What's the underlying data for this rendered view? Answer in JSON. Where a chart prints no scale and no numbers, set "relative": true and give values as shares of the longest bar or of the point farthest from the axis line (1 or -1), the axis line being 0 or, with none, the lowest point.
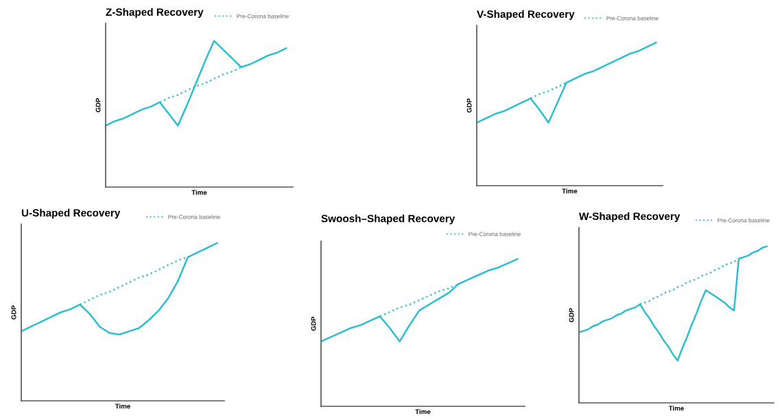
{
  "chart_data": [
    {
      "type": "line",
      "title": "Z-Shaped Recovery",
      "xlabel": "Time",
      "ylabel": "GDP",
      "relative": true,
      "tick_labels": false,
      "legend": "top right",
      "categories": [
        null,
        null,
        null,
        null,
        null,
        null,
        null,
        null,
        null,
        null,
        null,
        null,
        null,
        null,
        null,
        null,
        null,
        null,
        null,
        null,
        null
      ],
      "series": [
        {
          "color": "#2cbdd3",
          "line_style": "solid",
          "values": [
            0.42,
            0.45,
            0.47,
            0.5,
            0.53,
            0.55,
            0.58,
            0.5,
            0.42,
            0.56,
            0.71,
            0.86,
            1.0,
            0.94,
            0.88,
            0.82,
            0.84,
            0.87,
            0.9,
            0.92,
            0.95
          ]
        },
        {
          "name": "Pre-Corona baseline",
          "color": "#3fc4c0",
          "line_style": "dotted",
          "values": [
            null,
            null,
            null,
            null,
            null,
            null,
            0.58,
            0.61,
            0.63,
            0.66,
            0.69,
            0.71,
            0.74,
            0.77,
            0.79,
            0.82,
            null,
            null,
            null,
            null,
            null
          ]
        }
      ]
    },
    {
      "type": "line",
      "title": "V-Shaped Recovery",
      "xlabel": "Time",
      "ylabel": "GDP",
      "relative": true,
      "tick_labels": false,
      "legend": "top right",
      "categories": [
        null,
        null,
        null,
        null,
        null,
        null,
        null,
        null,
        null,
        null,
        null,
        null,
        null,
        null,
        null,
        null,
        null,
        null,
        null,
        null,
        null
      ],
      "series": [
        {
          "color": "#2cbdd3",
          "line_style": "solid",
          "values": [
            0.44,
            0.47,
            0.5,
            0.52,
            0.55,
            0.58,
            0.61,
            0.53,
            0.44,
            0.58,
            0.72,
            0.75,
            0.78,
            0.8,
            0.83,
            0.86,
            0.89,
            0.92,
            0.94,
            0.97,
            1.0
          ]
        },
        {
          "name": "Pre-Corona baseline",
          "color": "#3fc4c0",
          "line_style": "dotted",
          "values": [
            null,
            null,
            null,
            null,
            null,
            null,
            0.61,
            0.64,
            0.66,
            0.69,
            0.72,
            null,
            null,
            null,
            null,
            null,
            null,
            null,
            null,
            null,
            null
          ]
        }
      ]
    },
    {
      "type": "line",
      "title": "U-Shaped Recovery",
      "xlabel": "Time",
      "ylabel": "GDP",
      "relative": true,
      "tick_labels": false,
      "legend": "top right",
      "categories": [
        null,
        null,
        null,
        null,
        null,
        null,
        null,
        null,
        null,
        null,
        null,
        null,
        null,
        null,
        null,
        null,
        null,
        null,
        null,
        null,
        null
      ],
      "series": [
        {
          "color": "#2cbdd3",
          "line_style": "solid",
          "values": [
            0.44,
            0.47,
            0.5,
            0.53,
            0.56,
            0.58,
            0.61,
            0.55,
            0.47,
            0.43,
            0.42,
            0.44,
            0.46,
            0.51,
            0.57,
            0.65,
            0.76,
            0.91,
            0.94,
            0.97,
            1.0
          ]
        },
        {
          "name": "Pre-Corona baseline",
          "color": "#3fc4c0",
          "line_style": "dotted",
          "values": [
            null,
            null,
            null,
            null,
            null,
            null,
            0.61,
            0.64,
            0.67,
            0.69,
            0.72,
            0.75,
            0.78,
            0.8,
            0.83,
            0.86,
            0.89,
            0.91,
            null,
            null,
            null
          ]
        }
      ]
    },
    {
      "type": "line",
      "title": "Swoosh–Shaped Recovery",
      "xlabel": "Time",
      "ylabel": "GDP",
      "relative": true,
      "tick_labels": false,
      "legend": "top right",
      "categories": [
        null,
        null,
        null,
        null,
        null,
        null,
        null,
        null,
        null,
        null,
        null,
        null,
        null,
        null,
        null,
        null,
        null,
        null,
        null,
        null,
        null
      ],
      "series": [
        {
          "color": "#2cbdd3",
          "line_style": "solid",
          "values": [
            0.44,
            0.47,
            0.5,
            0.53,
            0.55,
            0.58,
            0.61,
            0.53,
            0.44,
            0.55,
            0.65,
            0.69,
            0.73,
            0.77,
            0.83,
            0.86,
            0.89,
            0.92,
            0.94,
            0.97,
            1.0
          ]
        },
        {
          "name": "Pre-Corona baseline",
          "color": "#3fc4c0",
          "line_style": "dotted",
          "values": [
            null,
            null,
            null,
            null,
            null,
            null,
            0.61,
            0.64,
            0.67,
            0.69,
            0.72,
            0.75,
            0.78,
            0.8,
            0.83,
            null,
            null,
            null,
            null,
            null,
            null
          ]
        }
      ]
    },
    {
      "type": "line",
      "title": "W-Shaped Recovery",
      "xlabel": "Time",
      "ylabel": "GDP",
      "relative": true,
      "tick_labels": false,
      "legend": "top right",
      "categories": [
        null,
        null,
        null,
        null,
        null,
        null,
        null,
        null,
        null,
        null,
        null,
        null,
        null,
        null,
        null,
        null,
        null,
        null,
        null,
        null,
        null,
        null,
        null,
        null,
        null,
        null,
        null,
        null,
        null,
        null,
        null,
        null,
        null,
        null,
        null,
        null,
        null,
        null,
        null,
        null,
        null
      ],
      "series": [
        {
          "color": "#2cbdd3",
          "line_style": "solid",
          "values": [
            0.45,
            0.46,
            0.47,
            0.49,
            0.5,
            0.52,
            0.53,
            0.54,
            0.56,
            0.57,
            0.59,
            0.6,
            0.61,
            0.63,
            0.58,
            0.54,
            0.49,
            0.45,
            0.4,
            0.36,
            0.31,
            0.27,
            0.35,
            0.42,
            0.5,
            0.57,
            0.65,
            0.72,
            0.7,
            0.68,
            0.66,
            0.64,
            0.61,
            0.59,
            0.92,
            0.93,
            0.94,
            0.96,
            0.97,
            0.99,
            1.0
          ]
        },
        {
          "name": "Pre-Corona baseline",
          "color": "#3fc4c0",
          "line_style": "dotted",
          "values": [
            null,
            null,
            null,
            null,
            null,
            null,
            null,
            null,
            null,
            null,
            null,
            null,
            null,
            0.63,
            0.64,
            0.65,
            0.67,
            0.68,
            0.7,
            0.71,
            0.72,
            0.74,
            0.75,
            0.77,
            0.78,
            0.79,
            0.81,
            0.82,
            0.83,
            0.85,
            0.86,
            0.88,
            0.89,
            0.9,
            0.92,
            null,
            null,
            null,
            null,
            null,
            null
          ]
        }
      ]
    }
  ]
}
